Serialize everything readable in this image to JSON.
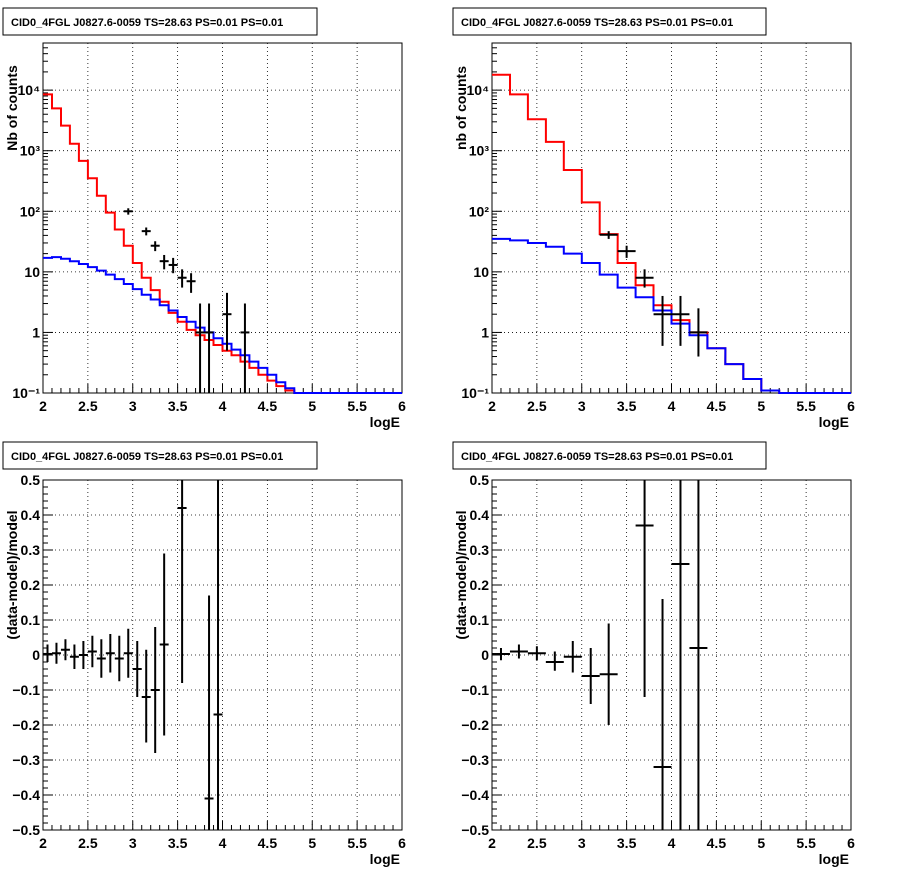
{
  "figure": {
    "panels": [
      {
        "title": "CID0_4FGL J0827.6-0059 TS=28.63 PS=0.01 PS=0.01",
        "xlabel": "logE",
        "ylabel": "Nb of counts",
        "yscale": "log",
        "xlim": [
          2,
          6
        ],
        "ylim": [
          0.1,
          60000
        ],
        "xticks": [
          "2",
          "2.5",
          "3",
          "3.5",
          "4",
          "4.5",
          "5",
          "5.5",
          "6"
        ],
        "yticks": [
          "10⁻¹",
          "1",
          "10",
          "10²",
          "10³",
          "10⁴"
        ]
      },
      {
        "title": "CID0_4FGL J0827.6-0059 TS=28.63 PS=0.01 PS=0.01",
        "xlabel": "logE",
        "ylabel": "nb of counts",
        "yscale": "log",
        "xlim": [
          2,
          6
        ],
        "ylim": [
          0.1,
          60000
        ],
        "xticks": [
          "2",
          "2.5",
          "3",
          "3.5",
          "4",
          "4.5",
          "5",
          "5.5",
          "6"
        ],
        "yticks": [
          "10⁻¹",
          "1",
          "10",
          "10²",
          "10³",
          "10⁴"
        ]
      },
      {
        "title": "CID0_4FGL J0827.6-0059 TS=28.63 PS=0.01 PS=0.01",
        "xlabel": "logE",
        "ylabel": "(data-model)/model",
        "yscale": "linear",
        "xlim": [
          2,
          6
        ],
        "ylim": [
          -0.5,
          0.5
        ],
        "xticks": [
          "2",
          "2.5",
          "3",
          "3.5",
          "4",
          "4.5",
          "5",
          "5.5",
          "6"
        ],
        "yticks": [
          "−0.5",
          "−0.4",
          "−0.3",
          "−0.2",
          "−0.1",
          "0",
          "0.1",
          "0.2",
          "0.3",
          "0.4",
          "0.5"
        ]
      },
      {
        "title": "CID0_4FGL J0827.6-0059 TS=28.63 PS=0.01 PS=0.01",
        "xlabel": "logE",
        "ylabel": "(data-model)/model",
        "yscale": "linear",
        "xlim": [
          2,
          6
        ],
        "ylim": [
          -0.5,
          0.5
        ],
        "xticks": [
          "2",
          "2.5",
          "3",
          "3.5",
          "4",
          "4.5",
          "5",
          "5.5",
          "6"
        ],
        "yticks": [
          "−0.5",
          "−0.4",
          "−0.3",
          "−0.2",
          "−0.1",
          "0",
          "0.1",
          "0.2",
          "0.3",
          "0.4",
          "0.5"
        ]
      }
    ]
  },
  "chart_data": [
    {
      "type": "line",
      "grid": true,
      "series": [
        {
          "color": "#ff0000",
          "kind": "histogram",
          "bin_width": 0.1,
          "x": [
            2.0,
            2.1,
            2.2,
            2.3,
            2.4,
            2.5,
            2.6,
            2.7,
            2.8,
            2.9,
            3.0,
            3.1,
            3.2,
            3.3,
            3.4,
            3.5,
            3.6,
            3.7,
            3.8,
            3.9,
            4.0,
            4.1,
            4.2,
            4.3,
            4.4,
            4.5,
            4.6,
            4.7,
            4.8,
            4.9,
            5.0,
            5.1,
            5.2,
            5.3,
            5.4,
            5.5,
            5.6,
            5.7,
            5.8,
            5.9
          ],
          "values": [
            8500,
            5000,
            2600,
            1300,
            680,
            350,
            180,
            95,
            50,
            27,
            14,
            8,
            5,
            3.2,
            2.1,
            1.5,
            1.1,
            0.9,
            0.75,
            0.62,
            0.5,
            0.42,
            0.33,
            0.26,
            0.2,
            0.16,
            0.13,
            0.11,
            0.1,
            0.1,
            0.1,
            0.1,
            0.1,
            0.1,
            0.1,
            0.1,
            0.1,
            0.1,
            0.1,
            0.1
          ]
        },
        {
          "color": "#0000ff",
          "kind": "histogram",
          "bin_width": 0.1,
          "x": [
            2.0,
            2.1,
            2.2,
            2.3,
            2.4,
            2.5,
            2.6,
            2.7,
            2.8,
            2.9,
            3.0,
            3.1,
            3.2,
            3.3,
            3.4,
            3.5,
            3.6,
            3.7,
            3.8,
            3.9,
            4.0,
            4.1,
            4.2,
            4.3,
            4.4,
            4.5,
            4.6,
            4.7,
            4.8,
            4.9,
            5.0,
            5.1,
            5.2,
            5.3,
            5.4,
            5.5,
            5.6,
            5.7,
            5.8,
            5.9
          ],
          "values": [
            17,
            17.5,
            16.5,
            15,
            13.5,
            12,
            10.5,
            9,
            7.6,
            6.3,
            5.2,
            4.2,
            3.5,
            2.8,
            2.3,
            1.8,
            1.5,
            1.2,
            1.0,
            0.8,
            0.65,
            0.52,
            0.42,
            0.33,
            0.26,
            0.2,
            0.15,
            0.12,
            0.1,
            0.1,
            0.1,
            0.1,
            0.1,
            0.1,
            0.1,
            0.1,
            0.1,
            0.1,
            0.1,
            0.1
          ]
        },
        {
          "color": "#000000",
          "kind": "data",
          "points": [
            {
              "x": 2.95,
              "y": 100,
              "lo": 88,
              "hi": 112,
              "xw": 0.05
            },
            {
              "x": 3.15,
              "y": 47,
              "lo": 40,
              "hi": 54,
              "xw": 0.05
            },
            {
              "x": 3.25,
              "y": 27,
              "lo": 22,
              "hi": 32,
              "xw": 0.05
            },
            {
              "x": 3.35,
              "y": 15,
              "lo": 11,
              "hi": 19,
              "xw": 0.05
            },
            {
              "x": 3.45,
              "y": 13,
              "lo": 9.5,
              "hi": 17,
              "xw": 0.05
            },
            {
              "x": 3.55,
              "y": 8,
              "lo": 5.5,
              "hi": 11,
              "xw": 0.05
            },
            {
              "x": 3.65,
              "y": 7,
              "lo": 4.5,
              "hi": 9.5,
              "xw": 0.05
            },
            {
              "x": 3.75,
              "y": 1,
              "lo": 0.1,
              "hi": 3,
              "xw": 0.05
            },
            {
              "x": 3.85,
              "y": 1,
              "lo": 0.1,
              "hi": 3,
              "xw": 0.05
            },
            {
              "x": 4.05,
              "y": 2,
              "lo": 0.5,
              "hi": 4.5,
              "xw": 0.05
            },
            {
              "x": 4.25,
              "y": 1,
              "lo": 0.1,
              "hi": 3,
              "xw": 0.05
            }
          ]
        }
      ]
    },
    {
      "type": "line",
      "grid": true,
      "series": [
        {
          "color": "#ff0000",
          "kind": "histogram",
          "bin_width": 0.2,
          "x": [
            2.0,
            2.2,
            2.4,
            2.6,
            2.8,
            3.0,
            3.2,
            3.4,
            3.6,
            3.8,
            4.0,
            4.2,
            4.4,
            4.6,
            4.8,
            5.0,
            5.2,
            5.4,
            5.6,
            5.8
          ],
          "values": [
            18000,
            8500,
            3300,
            1400,
            480,
            140,
            42,
            14,
            6,
            2.8,
            1.6,
            1.0,
            0.55,
            0.3,
            0.17,
            0.11,
            0.1,
            0.1,
            0.1,
            0.1
          ]
        },
        {
          "color": "#0000ff",
          "kind": "histogram",
          "bin_width": 0.2,
          "x": [
            2.0,
            2.2,
            2.4,
            2.6,
            2.8,
            3.0,
            3.2,
            3.4,
            3.6,
            3.8,
            4.0,
            4.2,
            4.4,
            4.6,
            4.8,
            5.0,
            5.2,
            5.4,
            5.6,
            5.8
          ],
          "values": [
            35,
            33,
            30,
            26,
            20,
            14,
            9,
            5.5,
            3.8,
            2.3,
            1.4,
            0.9,
            0.55,
            0.3,
            0.17,
            0.11,
            0.1,
            0.1,
            0.1,
            0.1
          ]
        },
        {
          "color": "#000000",
          "kind": "data",
          "points": [
            {
              "x": 3.3,
              "y": 41,
              "lo": 35,
              "hi": 47,
              "xw": 0.1
            },
            {
              "x": 3.5,
              "y": 22,
              "lo": 17,
              "hi": 27,
              "xw": 0.1
            },
            {
              "x": 3.7,
              "y": 8,
              "lo": 5.5,
              "hi": 11,
              "xw": 0.1
            },
            {
              "x": 3.9,
              "y": 2,
              "lo": 0.6,
              "hi": 4,
              "xw": 0.1
            },
            {
              "x": 4.1,
              "y": 2,
              "lo": 0.6,
              "hi": 4,
              "xw": 0.1
            },
            {
              "x": 4.3,
              "y": 1,
              "lo": 0.4,
              "hi": 2.5,
              "xw": 0.1
            }
          ]
        }
      ]
    },
    {
      "type": "scatter",
      "grid": true,
      "series": [
        {
          "color": "#000000",
          "kind": "data",
          "points": [
            {
              "x": 2.05,
              "y": 0.003,
              "lo": -0.02,
              "hi": 0.03,
              "xw": 0.05
            },
            {
              "x": 2.15,
              "y": 0.005,
              "lo": -0.025,
              "hi": 0.035,
              "xw": 0.05
            },
            {
              "x": 2.25,
              "y": 0.015,
              "lo": -0.015,
              "hi": 0.045,
              "xw": 0.05
            },
            {
              "x": 2.35,
              "y": -0.005,
              "lo": -0.04,
              "hi": 0.03,
              "xw": 0.05
            },
            {
              "x": 2.45,
              "y": 0.0,
              "lo": -0.04,
              "hi": 0.04,
              "xw": 0.05
            },
            {
              "x": 2.55,
              "y": 0.01,
              "lo": -0.035,
              "hi": 0.055,
              "xw": 0.05
            },
            {
              "x": 2.65,
              "y": -0.01,
              "lo": -0.065,
              "hi": 0.045,
              "xw": 0.05
            },
            {
              "x": 2.75,
              "y": 0.005,
              "lo": -0.05,
              "hi": 0.06,
              "xw": 0.05
            },
            {
              "x": 2.85,
              "y": -0.01,
              "lo": -0.075,
              "hi": 0.055,
              "xw": 0.05
            },
            {
              "x": 2.95,
              "y": 0.005,
              "lo": -0.065,
              "hi": 0.075,
              "xw": 0.05
            },
            {
              "x": 3.05,
              "y": -0.04,
              "lo": -0.12,
              "hi": 0.04,
              "xw": 0.05
            },
            {
              "x": 3.15,
              "y": -0.12,
              "lo": -0.25,
              "hi": 0.015,
              "xw": 0.05
            },
            {
              "x": 3.25,
              "y": -0.1,
              "lo": -0.28,
              "hi": 0.08,
              "xw": 0.05
            },
            {
              "x": 3.35,
              "y": 0.03,
              "lo": -0.23,
              "hi": 0.29,
              "xw": 0.05
            },
            {
              "x": 3.55,
              "y": 0.42,
              "lo": -0.08,
              "hi": 0.5,
              "xw": 0.05
            },
            {
              "x": 3.85,
              "y": -0.41,
              "lo": -0.5,
              "hi": 0.17,
              "xw": 0.05
            },
            {
              "x": 3.95,
              "y": -0.17,
              "lo": -0.5,
              "hi": 0.5,
              "xw": 0.05
            }
          ]
        }
      ]
    },
    {
      "type": "scatter",
      "grid": true,
      "series": [
        {
          "color": "#000000",
          "kind": "data",
          "points": [
            {
              "x": 2.1,
              "y": 0.003,
              "lo": -0.015,
              "hi": 0.02,
              "xw": 0.1
            },
            {
              "x": 2.3,
              "y": 0.01,
              "lo": -0.01,
              "hi": 0.03,
              "xw": 0.1
            },
            {
              "x": 2.5,
              "y": 0.005,
              "lo": -0.015,
              "hi": 0.025,
              "xw": 0.1
            },
            {
              "x": 2.7,
              "y": -0.02,
              "lo": -0.045,
              "hi": 0.01,
              "xw": 0.1
            },
            {
              "x": 2.9,
              "y": -0.005,
              "lo": -0.05,
              "hi": 0.04,
              "xw": 0.1
            },
            {
              "x": 3.1,
              "y": -0.06,
              "lo": -0.14,
              "hi": 0.02,
              "xw": 0.1
            },
            {
              "x": 3.3,
              "y": -0.055,
              "lo": -0.2,
              "hi": 0.09,
              "xw": 0.1
            },
            {
              "x": 3.7,
              "y": 0.37,
              "lo": -0.12,
              "hi": 0.5,
              "xw": 0.1
            },
            {
              "x": 3.9,
              "y": -0.32,
              "lo": -0.5,
              "hi": 0.16,
              "xw": 0.1
            },
            {
              "x": 4.1,
              "y": 0.26,
              "lo": -0.5,
              "hi": 0.5,
              "xw": 0.1
            },
            {
              "x": 4.3,
              "y": 0.02,
              "lo": -0.5,
              "hi": 0.5,
              "xw": 0.1
            }
          ]
        }
      ]
    }
  ]
}
